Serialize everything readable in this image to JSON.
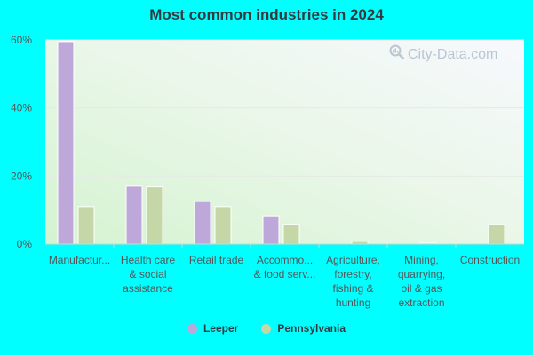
{
  "chart_data": {
    "type": "bar",
    "title": "Most common industries in 2024",
    "categories": [
      "Manufactur...",
      "Health care & social assistance",
      "Retail trade",
      "Accommo... & food serv...",
      "Agriculture, forestry, fishing & hunting",
      "Mining, quarrying, oil & gas extraction",
      "Construction"
    ],
    "category_lines": [
      [
        "Manufactur..."
      ],
      [
        "Health care",
        "& social",
        "assistance"
      ],
      [
        "Retail trade"
      ],
      [
        "Accommo...",
        "& food serv..."
      ],
      [
        "Agriculture,",
        "forestry,",
        "fishing &",
        "hunting"
      ],
      [
        "Mining,",
        "quarrying,",
        "oil & gas",
        "extraction"
      ],
      [
        "Construction"
      ]
    ],
    "series": [
      {
        "name": "Leeper",
        "color": "#BEA8DA",
        "values": [
          59.5,
          17.0,
          12.5,
          8.3,
          0,
          0,
          0
        ]
      },
      {
        "name": "Pennsylvania",
        "color": "#C5D7A6",
        "values": [
          11.0,
          16.8,
          11.0,
          5.8,
          0.8,
          0.3,
          5.9
        ]
      }
    ],
    "y_ticks": [
      "0%",
      "20%",
      "40%",
      "60%"
    ],
    "y_tick_values": [
      0,
      20,
      40,
      60
    ],
    "ylim": [
      0,
      60
    ],
    "xlabel": "",
    "ylabel": "",
    "grid": true,
    "legend_position": "bottom-center"
  },
  "watermark": {
    "text": "City-Data.com",
    "icon": "magnifier-chart-icon"
  }
}
